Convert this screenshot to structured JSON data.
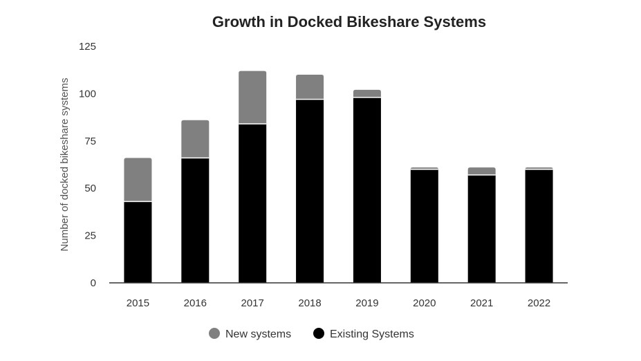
{
  "chart_data": {
    "type": "bar",
    "stacked": true,
    "title": "Growth in Docked Bikeshare Systems",
    "xlabel": "",
    "ylabel": "Number of docked bikeshare systems",
    "ylim": [
      0,
      125
    ],
    "yticks": [
      0,
      25,
      50,
      75,
      100,
      125
    ],
    "grid": false,
    "legend": "bottom",
    "categories": [
      "2015",
      "2016",
      "2017",
      "2018",
      "2019",
      "2020",
      "2021",
      "2022"
    ],
    "series": [
      {
        "name": "Existing Systems",
        "color": "#000000",
        "values": [
          43,
          66,
          84,
          97,
          98,
          60,
          57,
          60
        ]
      },
      {
        "name": "New systems",
        "color": "#808080",
        "values": [
          23,
          20,
          28,
          13,
          4,
          1,
          4,
          1
        ]
      }
    ],
    "legend_order": [
      1,
      0
    ]
  }
}
